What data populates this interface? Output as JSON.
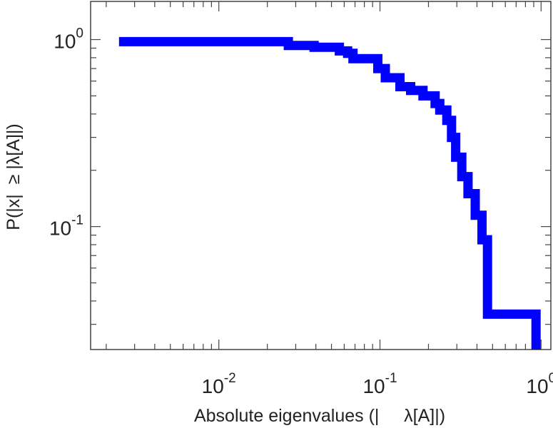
{
  "chart_data": {
    "type": "line",
    "title": "",
    "xlabel": "Absolute eigenvalues (|     λ[A]|)",
    "ylabel": "P(|x|  ≥ |λ[A]|)",
    "xscale": "log",
    "yscale": "log",
    "xlim": [
      0.0016,
      1.15
    ],
    "ylim": [
      0.022,
      1.6
    ],
    "grid": false,
    "legend": "none",
    "line_color": "#0000ff",
    "x_ticks": [
      {
        "value": 0.01,
        "base": "10",
        "exp": "-2"
      },
      {
        "value": 0.1,
        "base": "10",
        "exp": "-1"
      },
      {
        "value": 1,
        "base": "10",
        "exp": "0"
      }
    ],
    "y_ticks": [
      {
        "value": 0.1,
        "base": "10",
        "exp": "-1"
      },
      {
        "value": 1,
        "base": "10",
        "exp": "0"
      }
    ],
    "series": [
      {
        "name": "",
        "x": [
          0.0024,
          0.027,
          0.027,
          0.039,
          0.039,
          0.056,
          0.056,
          0.063,
          0.063,
          0.068,
          0.068,
          0.097,
          0.097,
          0.108,
          0.108,
          0.133,
          0.133,
          0.155,
          0.155,
          0.185,
          0.185,
          0.22,
          0.22,
          0.235,
          0.235,
          0.26,
          0.26,
          0.278,
          0.278,
          0.295,
          0.295,
          0.322,
          0.322,
          0.352,
          0.352,
          0.39,
          0.39,
          0.43,
          0.43,
          0.465,
          0.465,
          0.93,
          0.93
        ],
        "y": [
          0.975,
          0.975,
          0.93,
          0.93,
          0.91,
          0.91,
          0.87,
          0.87,
          0.845,
          0.845,
          0.79,
          0.79,
          0.7,
          0.7,
          0.625,
          0.625,
          0.56,
          0.56,
          0.535,
          0.535,
          0.5,
          0.5,
          0.455,
          0.455,
          0.42,
          0.42,
          0.37,
          0.37,
          0.3,
          0.3,
          0.235,
          0.235,
          0.185,
          0.185,
          0.15,
          0.15,
          0.115,
          0.115,
          0.085,
          0.085,
          0.034,
          0.034,
          0.022
        ]
      }
    ]
  }
}
